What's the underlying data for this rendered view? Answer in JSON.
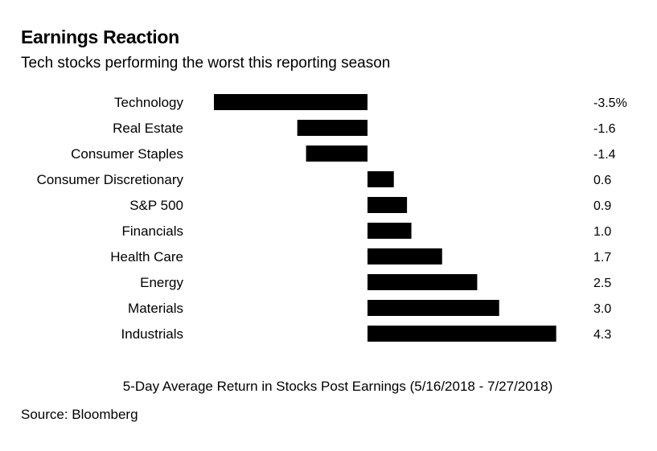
{
  "header": {
    "title": "Earnings Reaction",
    "subtitle": "Tech stocks performing the worst this reporting season"
  },
  "footer": {
    "xlabel": "5-Day Average Return in Stocks Post Earnings (5/16/2018 - 7/27/2018)",
    "source": "Source: Bloomberg"
  },
  "chart_data": {
    "type": "bar",
    "orientation": "horizontal",
    "title": "Earnings Reaction",
    "subtitle": "Tech stocks performing the worst this reporting season",
    "xlabel": "5-Day Average Return in Stocks Post Earnings (5/16/2018 - 7/27/2018)",
    "ylabel": "",
    "categories": [
      "Technology",
      "Real Estate",
      "Consumer Staples",
      "Consumer Discretionary",
      "S&P 500",
      "Financials",
      "Health Care",
      "Energy",
      "Materials",
      "Industrials"
    ],
    "values": [
      -3.5,
      -1.6,
      -1.4,
      0.6,
      0.9,
      1.0,
      1.7,
      2.5,
      3.0,
      4.3
    ],
    "value_labels": [
      "-3.5%",
      "-1.6",
      "-1.4",
      "0.6",
      "0.9",
      "1.0",
      "1.7",
      "2.5",
      "3.0",
      "4.3"
    ],
    "xlim": [
      -3.5,
      4.3
    ],
    "grid": false,
    "legend": "none",
    "bar_color": "#000000"
  }
}
